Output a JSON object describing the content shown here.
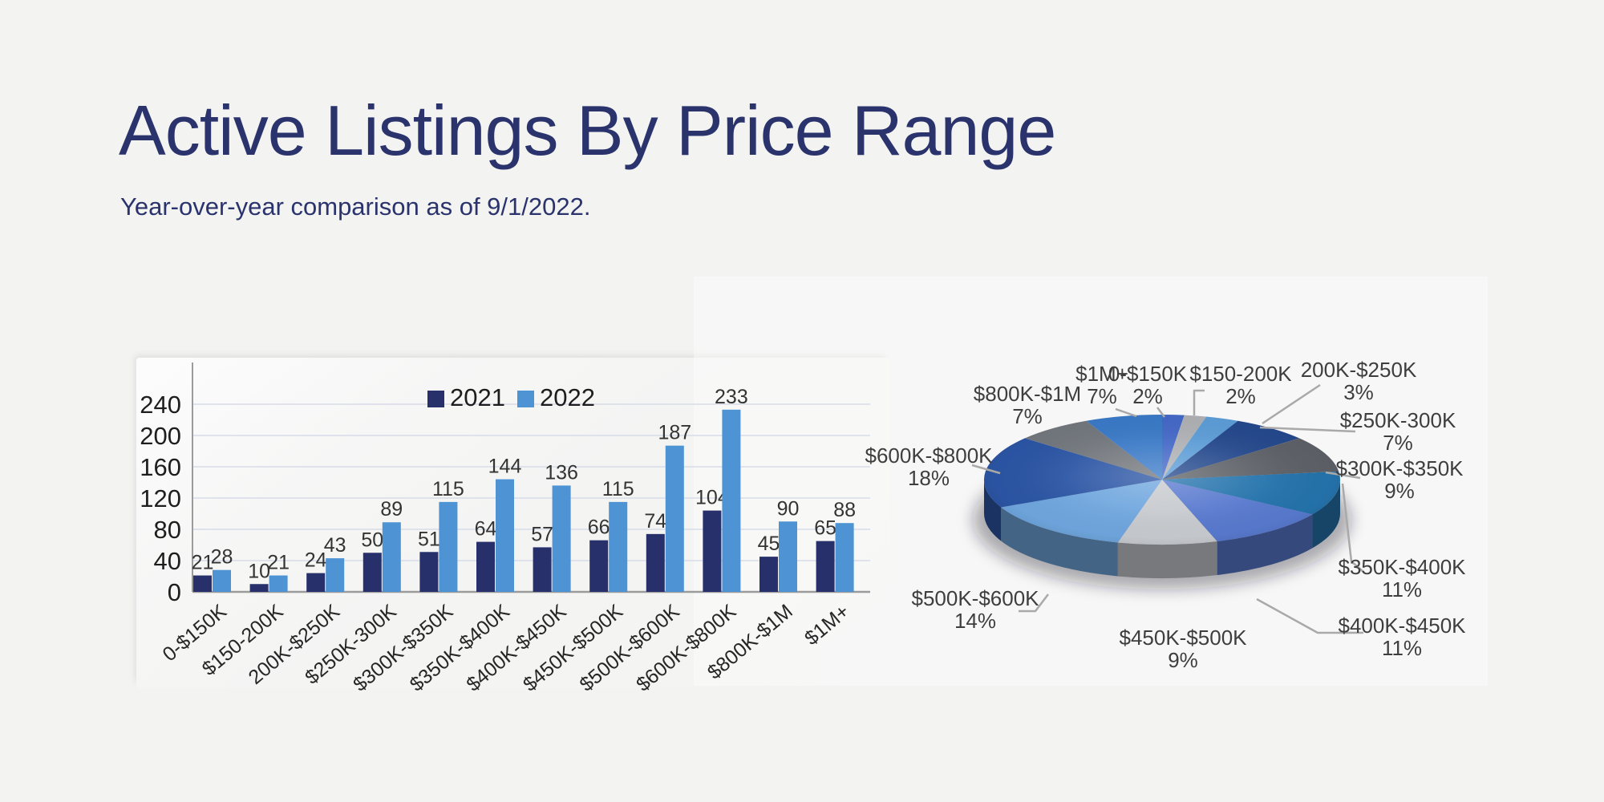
{
  "page": {
    "background_color": "#F3F3F2"
  },
  "header": {
    "title": "Active Listings By Price Range",
    "subtitle": "Year-over-year comparison as of 9/1/2022."
  },
  "chart_data": [
    {
      "type": "bar",
      "title": "",
      "categories": [
        "0-$150K",
        "$150-200K",
        "200K-$250K",
        "$250K-300K",
        "$300K-$350K",
        "$350K-$400K",
        "$400K-$450K",
        "$450K-$500K",
        "$500K-$600K",
        "$600K-$800K",
        "$800K-$1M",
        "$1M+"
      ],
      "series": [
        {
          "name": "2021",
          "color": "#27306B",
          "values": [
            21,
            10,
            24,
            50,
            51,
            64,
            57,
            66,
            74,
            104,
            45,
            65
          ]
        },
        {
          "name": "2022",
          "color": "#4E93D3",
          "values": [
            28,
            21,
            43,
            89,
            115,
            144,
            136,
            115,
            187,
            233,
            90,
            88
          ]
        }
      ],
      "ylabel": "",
      "xlabel": "",
      "ylim": [
        0,
        240
      ],
      "yticks": [
        0,
        40,
        80,
        120,
        160,
        200,
        240
      ],
      "grid": true,
      "legend_position": "top",
      "gridline_color": "#D7DCE8",
      "axis_color": "#9B9B9B",
      "value_label_color": "#333333",
      "tick_label_color": "#1E1E1E"
    },
    {
      "type": "pie",
      "title": "",
      "labels": [
        "0-$150K",
        "$150-200K",
        "200K-$250K",
        "$250K-300K",
        "$300K-$350K",
        "$350K-$400K",
        "$400K-$450K",
        "$450K-$500K",
        "$500K-$600K",
        "$600K-$800K",
        "$800K-$1M",
        "$1M+"
      ],
      "values": [
        2,
        2,
        3,
        7,
        9,
        11,
        11,
        9,
        14,
        18,
        7,
        7
      ],
      "unit": "%",
      "colors": [
        "#4468C6",
        "#AEB0B4",
        "#5C9CD6",
        "#24488C",
        "#5D6167",
        "#2473AC",
        "#5879CE",
        "#C7CACE",
        "#6FA6DE",
        "#2B55A4",
        "#72777D",
        "#3A79C6"
      ],
      "effect": "3d",
      "start_angle_deg": 0,
      "direction": "clockwise",
      "label_color": "#3E3E3E",
      "leader_line_color": "#A9A9A9"
    }
  ]
}
